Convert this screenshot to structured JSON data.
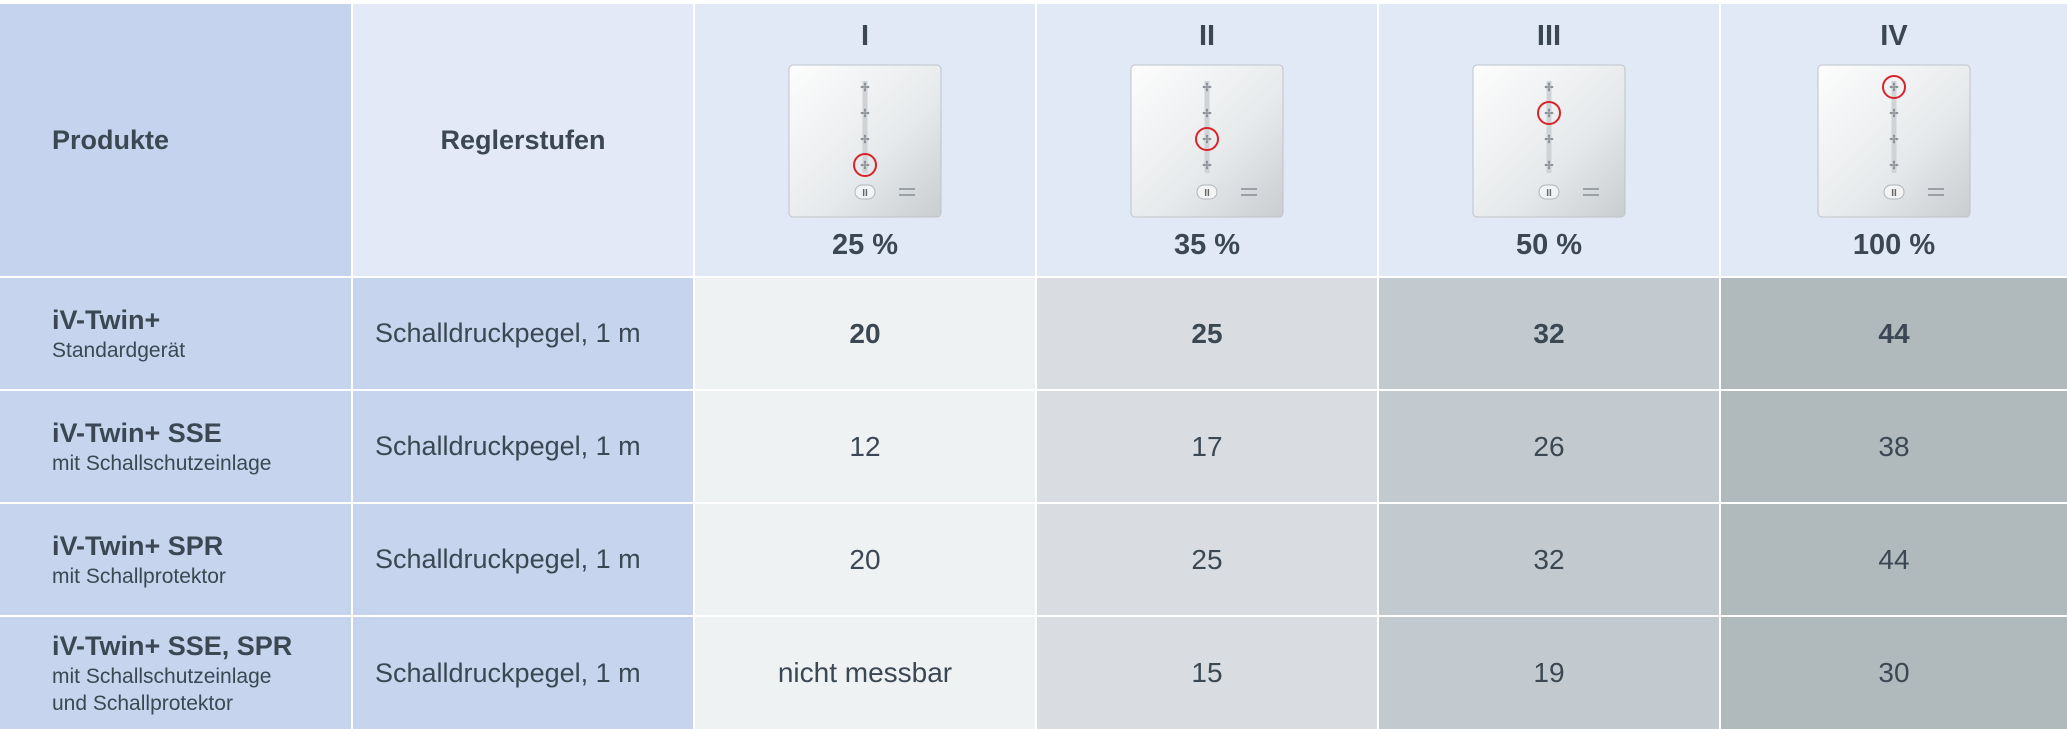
{
  "header": {
    "products": "Produkte",
    "levels": "Reglerstufen",
    "stages": [
      {
        "label": "I",
        "percent": "25 %"
      },
      {
        "label": "II",
        "percent": "35 %"
      },
      {
        "label": "III",
        "percent": "50 %"
      },
      {
        "label": "IV",
        "percent": "100 %"
      }
    ]
  },
  "rows": [
    {
      "name": "iV-Twin+",
      "subtitle": [
        "Standardgerät"
      ],
      "measure": "Schalldruckpegel, 1 m",
      "values": [
        "20",
        "25",
        "32",
        "44"
      ]
    },
    {
      "name": "iV-Twin+ SSE",
      "subtitle": [
        "mit Schallschutzeinlage"
      ],
      "measure": "Schalldruckpegel, 1 m",
      "values": [
        "12",
        "17",
        "26",
        "38"
      ]
    },
    {
      "name": "iV-Twin+ SPR",
      "subtitle": [
        "mit Schallprotektor"
      ],
      "measure": "Schalldruckpegel, 1 m",
      "values": [
        "20",
        "25",
        "32",
        "44"
      ]
    },
    {
      "name": "iV-Twin+ SSE, SPR",
      "subtitle": [
        "mit Schallschutzeinlage",
        "und Schallprotektor"
      ],
      "measure": "Schalldruckpegel, 1 m",
      "values": [
        "nicht messbar",
        "15",
        "19",
        "30"
      ]
    }
  ]
}
